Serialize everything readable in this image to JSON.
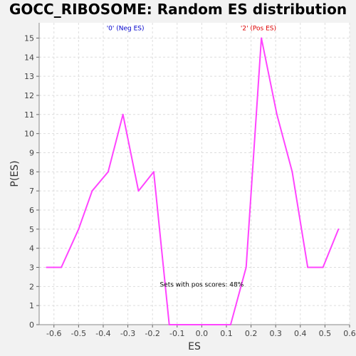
{
  "chart_data": {
    "type": "line",
    "title": "GOCC_RIBOSOME: Random ES distribution",
    "xlabel": "ES",
    "ylabel": "P(ES)",
    "xlim": [
      -0.66,
      0.6
    ],
    "ylim": [
      0,
      15.8
    ],
    "x_ticks": [
      -0.6,
      -0.5,
      -0.4,
      -0.3,
      -0.2,
      -0.1,
      0,
      0.1,
      0.2,
      0.3,
      0.4,
      0.5,
      0.6
    ],
    "x_tick_labels": [
      "-0.6",
      "-0.5",
      "-0.4",
      "-0.3",
      "-0.2",
      "-0.1",
      "0.0",
      "0.1",
      "0.2",
      "0.3",
      "0.4",
      "0.5",
      "0.6"
    ],
    "y_ticks": [
      0,
      1,
      2,
      3,
      4,
      5,
      6,
      7,
      8,
      9,
      10,
      11,
      12,
      13,
      14,
      15
    ],
    "grid": true,
    "series": [
      {
        "color": "#ff44ff",
        "x": [
          -0.63,
          -0.57,
          -0.5,
          -0.445,
          -0.38,
          -0.32,
          -0.257,
          -0.195,
          -0.132,
          -0.07,
          -0.007,
          0.055,
          0.117,
          0.18,
          0.242,
          0.305,
          0.367,
          0.43,
          0.492,
          0.555
        ],
        "y": [
          3,
          3,
          5,
          7,
          8,
          11,
          7,
          8,
          0,
          0,
          0,
          0,
          0,
          3,
          15,
          11,
          8,
          3,
          3,
          5
        ]
      }
    ],
    "annotations": [
      {
        "text": "'0' (Neg ES)",
        "x": -0.31,
        "y": 15.4,
        "color": "#0000cc"
      },
      {
        "text": "'2' (Pos ES)",
        "x": 0.23,
        "y": 15.4,
        "color": "#dd0000"
      },
      {
        "text": "Sets with pos scores: 48%",
        "x": 0.0,
        "y": 2.0,
        "color": "#000000"
      }
    ]
  }
}
